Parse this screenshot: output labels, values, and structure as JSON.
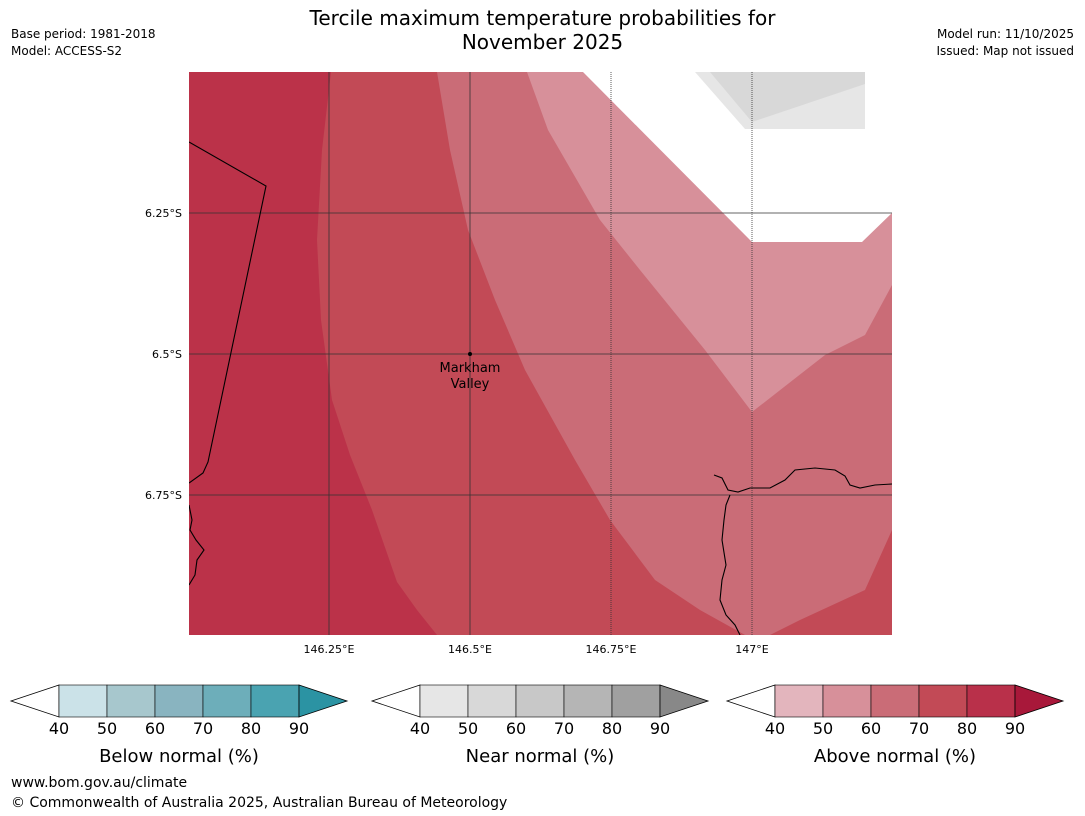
{
  "title_line1": "Tercile maximum temperature probabilities for",
  "title_line2": "November 2025",
  "meta": {
    "base_period": "Base period: 1981-2018",
    "model": "Model: ACCESS-S2",
    "model_run": "Model run: 11/10/2025",
    "issued": "Issued: Map not issued"
  },
  "map": {
    "lat_labels": [
      "6.25°S",
      "6.5°S",
      "6.75°S"
    ],
    "lon_labels": [
      "146.25°E",
      "146.5°E",
      "146.75°E",
      "147°E"
    ],
    "place": {
      "name_line1": "Markham",
      "name_line2": "Valley"
    }
  },
  "colorbars": [
    {
      "name": "below",
      "label": "Below normal (%)",
      "ticks": [
        "40",
        "50",
        "60",
        "70",
        "80",
        "90"
      ],
      "colors": [
        "#cbe2e8",
        "#a7c7cd",
        "#89b4c0",
        "#6daeba",
        "#4aa3b1",
        "#2b93a3"
      ]
    },
    {
      "name": "near",
      "label": "Near normal (%)",
      "ticks": [
        "40",
        "50",
        "60",
        "70",
        "80",
        "90"
      ],
      "colors": [
        "#e6e6e6",
        "#d8d8d8",
        "#c8c8c8",
        "#b5b5b5",
        "#a0a0a0",
        "#888888"
      ]
    },
    {
      "name": "above",
      "label": "Above normal (%)",
      "ticks": [
        "40",
        "50",
        "60",
        "70",
        "80",
        "90"
      ],
      "colors": [
        "#e3b5bd",
        "#d7909a",
        "#ca6c77",
        "#c24a56",
        "#b9304a",
        "#a8183a"
      ]
    }
  ],
  "footer": {
    "url": "www.bom.gov.au/climate",
    "copyright": "© Commonwealth of Australia 2025, Australian Bureau of Meteorology"
  }
}
